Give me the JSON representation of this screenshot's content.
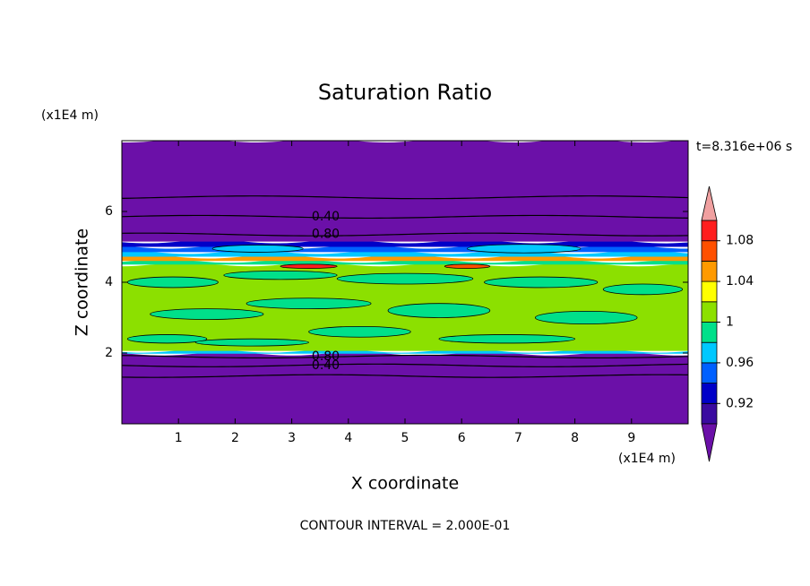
{
  "chart_data": {
    "type": "contour",
    "title": "Saturation Ratio",
    "xlabel": "X coordinate",
    "ylabel": "Z coordinate",
    "x_unit": "(x1E4 m)",
    "y_unit": "(x1E4 m)",
    "time_label": "t=8.316e+06 s",
    "footer": "CONTOUR INTERVAL = 2.000E-01",
    "xlim": [
      0,
      10
    ],
    "ylim": [
      0,
      8
    ],
    "xticks": [
      1,
      2,
      3,
      4,
      5,
      6,
      7,
      8,
      9
    ],
    "yticks": [
      2,
      4,
      6
    ],
    "colorbar": {
      "levels": [
        0.9,
        0.92,
        0.94,
        0.96,
        0.98,
        1.0,
        1.02,
        1.04,
        1.06,
        1.08,
        1.1
      ],
      "colors": [
        "#3a0aa0",
        "#0000c8",
        "#0060ff",
        "#00c8ff",
        "#00e08a",
        "#8ce000",
        "#ffff00",
        "#ff9a00",
        "#ff5000",
        "#ff1e1e"
      ],
      "under_color": "#6b10a8",
      "over_color": "#f0a0a0",
      "ticks": [
        0.92,
        0.96,
        1,
        1.04,
        1.08
      ]
    },
    "bands": [
      {
        "z": [
          0,
          1.98
        ],
        "value": 0.5
      },
      {
        "z": [
          1.98,
          2.06
        ],
        "value": 0.97
      },
      {
        "z": [
          2.06,
          4.5
        ],
        "value": 1.01
      },
      {
        "z": [
          4.5,
          4.6
        ],
        "value": 0.99
      },
      {
        "z": [
          4.6,
          4.72
        ],
        "value": 1.05
      },
      {
        "z": [
          4.72,
          4.85
        ],
        "value": 0.97
      },
      {
        "z": [
          4.85,
          5.0
        ],
        "value": 0.95
      },
      {
        "z": [
          5.0,
          5.15
        ],
        "value": 0.93
      },
      {
        "z": [
          5.15,
          8
        ],
        "value": 0.5
      }
    ],
    "patches": [
      {
        "x": 0.8,
        "z": 2.4,
        "rx": 0.7,
        "rz": 0.12,
        "value": 0.99
      },
      {
        "x": 2.3,
        "z": 2.3,
        "rx": 1.0,
        "rz": 0.1,
        "value": 0.99
      },
      {
        "x": 4.2,
        "z": 2.6,
        "rx": 0.9,
        "rz": 0.15,
        "value": 0.99
      },
      {
        "x": 6.8,
        "z": 2.4,
        "rx": 1.2,
        "rz": 0.12,
        "value": 0.99
      },
      {
        "x": 1.5,
        "z": 3.1,
        "rx": 1.0,
        "rz": 0.15,
        "value": 0.99
      },
      {
        "x": 3.3,
        "z": 3.4,
        "rx": 1.1,
        "rz": 0.15,
        "value": 0.99
      },
      {
        "x": 5.6,
        "z": 3.2,
        "rx": 0.9,
        "rz": 0.2,
        "value": 0.99
      },
      {
        "x": 8.2,
        "z": 3.0,
        "rx": 0.9,
        "rz": 0.18,
        "value": 0.99
      },
      {
        "x": 0.9,
        "z": 4.0,
        "rx": 0.8,
        "rz": 0.15,
        "value": 0.99
      },
      {
        "x": 2.8,
        "z": 4.2,
        "rx": 1.0,
        "rz": 0.12,
        "value": 0.99
      },
      {
        "x": 5.0,
        "z": 4.1,
        "rx": 1.2,
        "rz": 0.15,
        "value": 0.99
      },
      {
        "x": 7.4,
        "z": 4.0,
        "rx": 1.0,
        "rz": 0.15,
        "value": 0.99
      },
      {
        "x": 9.2,
        "z": 3.8,
        "rx": 0.7,
        "rz": 0.15,
        "value": 0.99
      },
      {
        "x": 3.3,
        "z": 4.45,
        "rx": 0.5,
        "rz": 0.06,
        "value": 1.09
      },
      {
        "x": 6.1,
        "z": 4.45,
        "rx": 0.4,
        "rz": 0.06,
        "value": 1.07
      },
      {
        "x": 2.4,
        "z": 4.95,
        "rx": 0.8,
        "rz": 0.1,
        "value": 0.97
      },
      {
        "x": 7.1,
        "z": 4.95,
        "rx": 1.0,
        "rz": 0.12,
        "value": 0.97
      }
    ],
    "contour_lines": [
      {
        "z": 6.4
      },
      {
        "z": 5.85,
        "level": {
          "value": 0.4,
          "label": "0.40"
        }
      },
      {
        "z": 5.35,
        "level": {
          "value": 0.8,
          "label": "0.80"
        }
      },
      {
        "z": 1.9,
        "level": {
          "value": 0.8,
          "label": "0.80"
        }
      },
      {
        "z": 1.65,
        "level": {
          "value": 0.4,
          "label": "0.40"
        }
      },
      {
        "z": 1.35
      }
    ]
  }
}
